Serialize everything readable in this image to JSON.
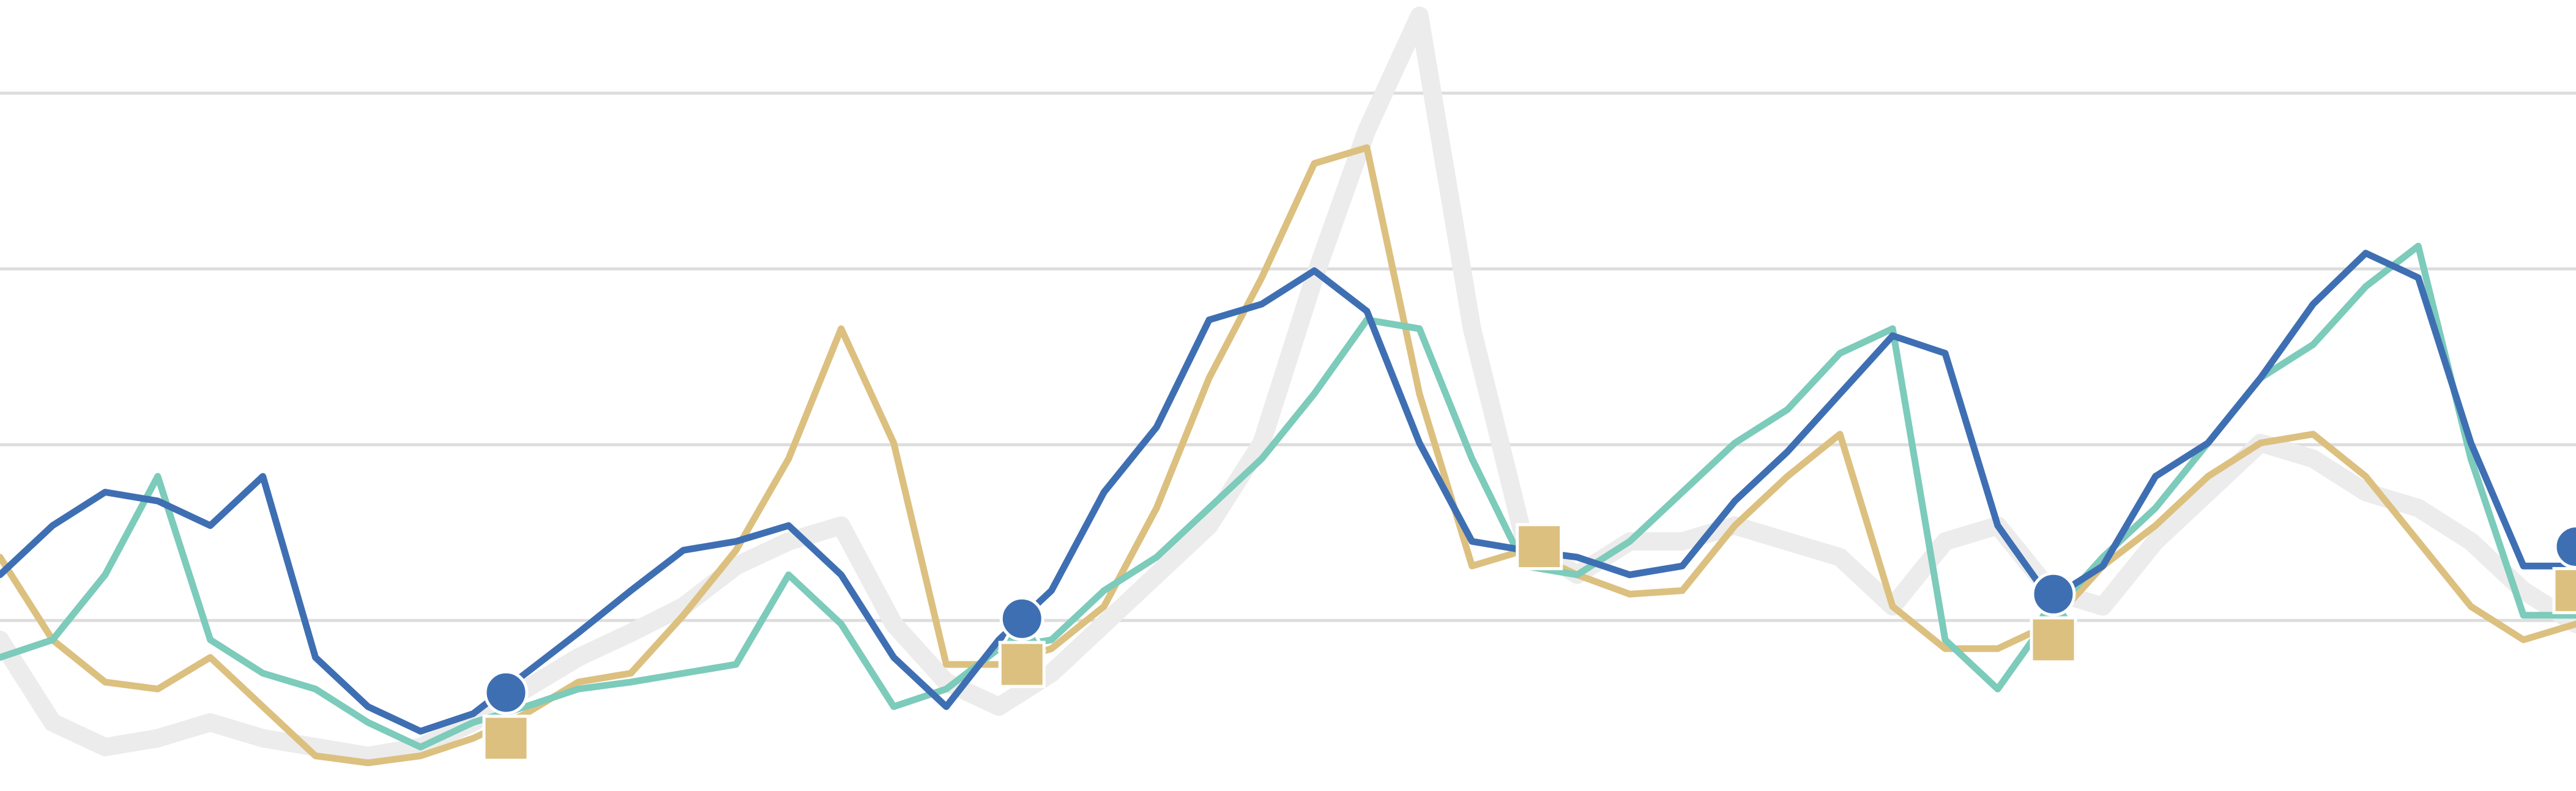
{
  "chart_data": {
    "type": "line",
    "x": [
      0,
      1,
      2,
      3,
      4,
      5,
      6,
      7,
      8,
      9,
      10,
      11,
      12,
      13,
      14,
      15,
      16,
      17,
      18,
      19,
      20,
      21,
      22,
      23,
      24,
      25,
      26,
      27,
      28,
      29,
      30,
      31,
      32,
      33,
      34,
      35,
      36,
      37,
      38,
      39,
      40,
      41,
      42,
      43,
      44,
      45,
      46,
      47,
      48,
      49
    ],
    "xlim": [
      0,
      49
    ],
    "ylim": [
      3,
      453
    ],
    "yticks": [
      100,
      200,
      300,
      400
    ],
    "grid": true,
    "series": [
      {
        "color": "#ececec",
        "values": [
          89,
          42,
          28,
          33,
          42,
          33,
          28,
          23,
          28,
          42,
          61,
          79,
          93,
          108,
          131,
          145,
          154,
          98,
          65,
          51,
          70,
          98,
          126,
          154,
          201,
          295,
          379,
          444,
          266,
          145,
          126,
          145,
          145,
          154,
          145,
          136,
          108,
          145,
          154,
          117,
          108,
          145,
          173,
          201,
          192,
          173,
          164,
          145,
          117,
          98
        ]
      },
      {
        "color": "#dcc07f",
        "values": [
          136,
          89,
          65,
          61,
          79,
          51,
          23,
          19,
          23,
          33,
          47,
          65,
          70,
          103,
          140,
          192,
          266,
          201,
          75,
          75,
          84,
          108,
          164,
          238,
          295,
          360,
          369,
          229,
          131,
          140,
          126,
          115,
          117,
          154,
          182,
          206,
          108,
          84,
          84,
          98,
          131,
          154,
          182,
          201,
          206,
          182,
          145,
          108,
          89,
          98
        ]
      },
      {
        "color": "#7ccbbb",
        "values": [
          79,
          89,
          126,
          182,
          89,
          70,
          61,
          42,
          28,
          42,
          51,
          61,
          65,
          70,
          75,
          126,
          98,
          51,
          61,
          84,
          89,
          117,
          136,
          164,
          192,
          229,
          271,
          266,
          192,
          131,
          126,
          145,
          173,
          201,
          220,
          252,
          266,
          89,
          61,
          103,
          136,
          164,
          201,
          238,
          257,
          290,
          313,
          192,
          103,
          103
        ]
      },
      {
        "color": "#3f6fb3",
        "values": [
          126,
          154,
          173,
          168,
          154,
          182,
          79,
          51,
          37,
          47,
          70,
          93,
          117,
          140,
          145,
          154,
          126,
          79,
          51,
          89,
          117,
          173,
          210,
          271,
          280,
          299,
          276,
          201,
          145,
          140,
          136,
          126,
          131,
          168,
          196,
          229,
          262,
          252,
          154,
          112,
          131,
          182,
          201,
          238,
          280,
          309,
          295,
          201,
          131,
          131
        ]
      }
    ],
    "markers": [
      {
        "shape": "triangle",
        "color": "#7ccbbb",
        "x": [
          19.44,
          39.06
        ],
        "values": [
          93,
          106
        ]
      },
      {
        "shape": "circle",
        "color": "#3f6fb3",
        "x": [
          9.625,
          19.44,
          39.06,
          49
        ],
        "values": [
          59,
          101,
          115,
          142
        ]
      },
      {
        "shape": "square",
        "color": "#dcc07f",
        "x": [
          9.625,
          19.44,
          29.28,
          39.06,
          49
        ],
        "values": [
          33,
          75,
          142,
          89,
          117
        ]
      }
    ]
  }
}
